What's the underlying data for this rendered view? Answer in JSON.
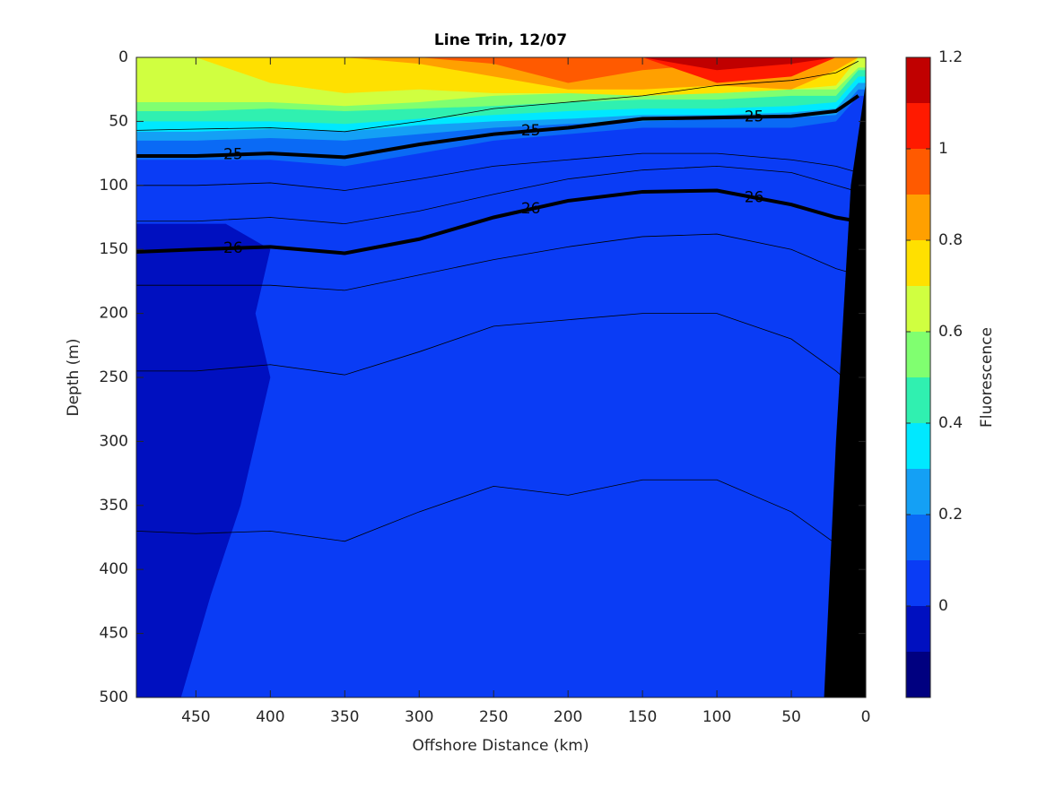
{
  "chart_data": {
    "type": "contour",
    "title": "Line Trin, 12/07",
    "xlabel": "Offshore Distance (km)",
    "ylabel": "Depth (m)",
    "xlim": [
      0,
      490
    ],
    "x_reversed": true,
    "ylim": [
      0,
      500
    ],
    "y_reversed": true,
    "xticks": [
      450,
      400,
      350,
      300,
      250,
      200,
      150,
      100,
      50,
      0
    ],
    "yticks": [
      0,
      50,
      100,
      150,
      200,
      250,
      300,
      350,
      400,
      450,
      500
    ],
    "x": [
      490,
      450,
      400,
      350,
      300,
      250,
      200,
      150,
      100,
      50,
      20,
      5
    ],
    "colorbar": {
      "label": "Fluorescence",
      "levels": [
        -0.2,
        -0.1,
        0,
        0.1,
        0.2,
        0.3,
        0.4,
        0.5,
        0.6,
        0.7,
        0.8,
        0.9,
        1,
        1.1,
        1.2
      ],
      "colors": [
        "#000080",
        "#0010c0",
        "#0a3cf5",
        "#0a6af5",
        "#14a0f5",
        "#00e8ff",
        "#30f0b0",
        "#80ff70",
        "#d0ff40",
        "#ffe000",
        "#ffa000",
        "#ff5a00",
        "#ff1a00",
        "#c00000"
      ],
      "ticks": [
        0,
        0.2,
        0.4,
        0.6,
        0.8,
        1,
        1.2
      ]
    },
    "background_bin": 2,
    "layers": [
      {
        "bin": 3,
        "depth": [
          80,
          80,
          80,
          85,
          75,
          65,
          60,
          55,
          55,
          55,
          50,
          30
        ]
      },
      {
        "bin": 4,
        "depth": [
          65,
          65,
          63,
          65,
          60,
          55,
          52,
          50,
          48,
          47,
          45,
          25
        ]
      },
      {
        "bin": 5,
        "depth": [
          58,
          58,
          56,
          58,
          53,
          50,
          48,
          45,
          45,
          43,
          40,
          20
        ]
      },
      {
        "bin": 6,
        "depth": [
          50,
          50,
          50,
          52,
          48,
          45,
          42,
          40,
          40,
          38,
          35,
          15
        ]
      },
      {
        "bin": 7,
        "depth": [
          42,
          42,
          40,
          42,
          40,
          38,
          35,
          33,
          33,
          30,
          30,
          10
        ]
      },
      {
        "bin": 8,
        "depth": [
          35,
          35,
          35,
          38,
          35,
          30,
          28,
          28,
          28,
          25,
          25,
          8
        ]
      },
      {
        "bin": 9,
        "depth": [
          0,
          0,
          20,
          28,
          25,
          28,
          28,
          30,
          28,
          25,
          22,
          0
        ]
      },
      {
        "bin": 10,
        "depth": [
          0,
          0,
          0,
          0,
          5,
          15,
          25,
          25,
          22,
          25,
          10,
          0
        ]
      },
      {
        "bin": 11,
        "depth": [
          0,
          0,
          0,
          0,
          0,
          5,
          20,
          10,
          5,
          0,
          0,
          0
        ]
      },
      {
        "bin": 12,
        "depth": [
          0,
          0,
          0,
          0,
          0,
          0,
          0,
          0,
          20,
          15,
          0,
          0
        ]
      },
      {
        "bin": 13,
        "depth": [
          0,
          0,
          0,
          0,
          0,
          0,
          0,
          0,
          10,
          5,
          0,
          0
        ]
      }
    ],
    "patches": [
      {
        "bin": 1,
        "x": [
          490,
          430,
          400,
          410,
          400,
          410,
          420,
          440,
          460,
          490
        ],
        "y": [
          130,
          130,
          150,
          200,
          250,
          300,
          350,
          420,
          500,
          500
        ]
      }
    ],
    "land": {
      "color": "#000000",
      "x": [
        28,
        20,
        10,
        0,
        0
      ],
      "y": [
        500,
        300,
        100,
        20,
        500
      ]
    },
    "contours": [
      {
        "depth": [
          57,
          56,
          55,
          58,
          50,
          40,
          35,
          30,
          22,
          18,
          12,
          3
        ]
      },
      {
        "level": 25,
        "depth": [
          77,
          77,
          75,
          78,
          68,
          60,
          55,
          48,
          47,
          46,
          42,
          30
        ]
      },
      {
        "depth": [
          100,
          100,
          98,
          104,
          95,
          85,
          80,
          75,
          75,
          80,
          85,
          90
        ]
      },
      {
        "depth": [
          128,
          128,
          125,
          130,
          120,
          107,
          95,
          88,
          85,
          90,
          100,
          105
        ]
      },
      {
        "level": 26,
        "depth": [
          152,
          150,
          148,
          153,
          142,
          125,
          112,
          105,
          104,
          115,
          125,
          128
        ]
      },
      {
        "depth": [
          178,
          178,
          178,
          182,
          170,
          158,
          148,
          140,
          138,
          150,
          165,
          170
        ]
      },
      {
        "depth": [
          245,
          245,
          240,
          248,
          230,
          210,
          205,
          200,
          200,
          220,
          245,
          260
        ]
      },
      {
        "depth": [
          370,
          372,
          370,
          378,
          355,
          335,
          342,
          330,
          330,
          355,
          380,
          400
        ]
      }
    ]
  }
}
